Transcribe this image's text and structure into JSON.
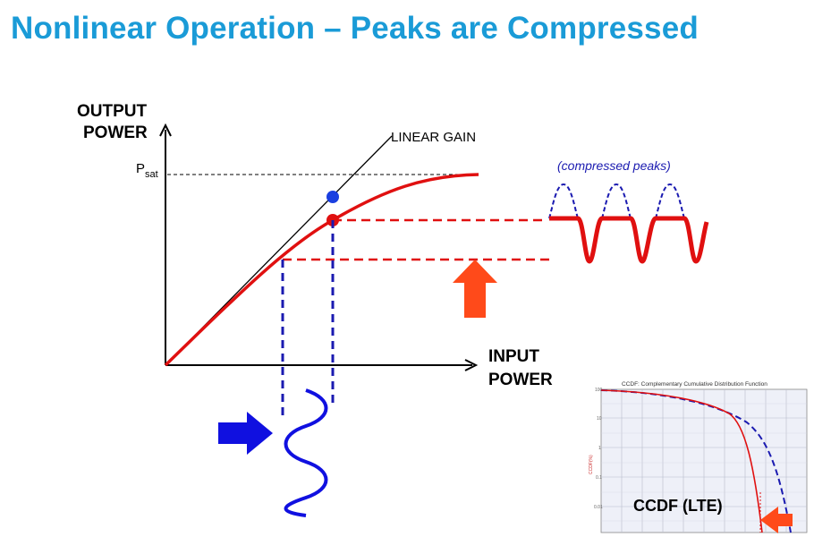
{
  "title": "Nonlinear Operation – Peaks are Compressed",
  "main_diagram": {
    "y_axis_label_line1": "OUTPUT",
    "y_axis_label_line2": "POWER",
    "x_axis_label_line1": "INPUT",
    "x_axis_label_line2": "POWER",
    "psat_label": "P",
    "psat_subscript": "sat",
    "linear_gain_label": "LINEAR GAIN",
    "compressed_peaks_note": "(compressed peaks)"
  },
  "ccdf_inset": {
    "title": "CCDF: Complementary Cumulative Distribution Function",
    "y_axis_label": "CCDF(%)",
    "y_ticks": [
      "100",
      "10",
      "1",
      "0.1",
      "0.01"
    ],
    "caption": "CCDF (LTE)"
  },
  "colors": {
    "title": "#1a9bd7",
    "amplifier_curve": "#e01010",
    "ideal_peaks": "#1a1ab0",
    "input_signal": "#1010e0",
    "arrow_red": "#ff4a1a",
    "arrow_blue": "#1010e0"
  }
}
